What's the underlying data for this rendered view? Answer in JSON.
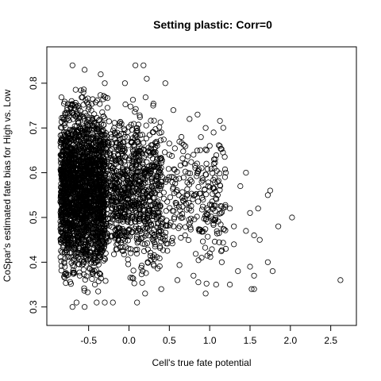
{
  "chart_data": {
    "type": "scatter",
    "title": "Setting plastic: Corr=0",
    "xlabel": "Cell's true fate potential",
    "ylabel": "CoSpar's estimated fate bias for High vs. Low",
    "xlim": [
      -0.9,
      2.7
    ],
    "ylim": [
      0.28,
      0.86
    ],
    "x_ticks": [
      -0.5,
      0.0,
      0.5,
      1.0,
      1.5,
      2.0,
      2.5
    ],
    "x_tick_labels": [
      "-0.5",
      "0.0",
      "0.5",
      "1.0",
      "1.5",
      "2.0",
      "2.5"
    ],
    "y_ticks": [
      0.3,
      0.4,
      0.5,
      0.6,
      0.7,
      0.8
    ],
    "y_tick_labels": [
      "0.3",
      "0.4",
      "0.5",
      "0.6",
      "0.7",
      "0.8"
    ],
    "grid": false,
    "marker": "open-circle",
    "marker_color": "#000000",
    "series": [
      {
        "points": [
          [
            -0.7,
            0.84
          ],
          [
            -0.55,
            0.83
          ],
          [
            -0.35,
            0.82
          ],
          [
            0.08,
            0.84
          ],
          [
            0.18,
            0.84
          ],
          [
            -0.3,
            0.8
          ],
          [
            -0.05,
            0.8
          ],
          [
            0.22,
            0.81
          ],
          [
            0.45,
            0.8
          ],
          [
            0.3,
            0.75
          ],
          [
            0.55,
            0.74
          ],
          [
            0.75,
            0.72
          ],
          [
            0.85,
            0.73
          ],
          [
            0.95,
            0.7
          ],
          [
            0.1,
            0.7
          ],
          [
            0.4,
            0.69
          ],
          [
            0.65,
            0.68
          ],
          [
            1.0,
            0.66
          ],
          [
            0.8,
            0.64
          ],
          [
            0.5,
            0.64
          ],
          [
            0.7,
            0.62
          ],
          [
            0.9,
            0.61
          ],
          [
            1.05,
            0.62
          ],
          [
            1.2,
            0.6
          ],
          [
            1.45,
            0.6
          ],
          [
            1.38,
            0.57
          ],
          [
            1.75,
            0.56
          ],
          [
            1.72,
            0.55
          ],
          [
            1.1,
            0.55
          ],
          [
            1.25,
            0.52
          ],
          [
            1.5,
            0.51
          ],
          [
            1.6,
            0.52
          ],
          [
            2.02,
            0.5
          ],
          [
            1.85,
            0.48
          ],
          [
            1.3,
            0.48
          ],
          [
            1.45,
            0.47
          ],
          [
            1.55,
            0.46
          ],
          [
            1.62,
            0.45
          ],
          [
            1.3,
            0.44
          ],
          [
            1.2,
            0.43
          ],
          [
            1.0,
            0.42
          ],
          [
            0.9,
            0.41
          ],
          [
            1.15,
            0.4
          ],
          [
            1.35,
            0.38
          ],
          [
            1.5,
            0.39
          ],
          [
            1.55,
            0.37
          ],
          [
            1.72,
            0.4
          ],
          [
            1.78,
            0.38
          ],
          [
            1.25,
            0.35
          ],
          [
            1.08,
            0.35
          ],
          [
            0.95,
            0.33
          ],
          [
            1.52,
            0.34
          ],
          [
            1.55,
            0.34
          ],
          [
            2.62,
            0.36
          ],
          [
            0.6,
            0.36
          ],
          [
            0.8,
            0.37
          ],
          [
            0.4,
            0.34
          ],
          [
            0.2,
            0.33
          ],
          [
            0.1,
            0.31
          ],
          [
            -0.3,
            0.31
          ],
          [
            -0.7,
            0.3
          ],
          [
            -0.65,
            0.31
          ],
          [
            -0.55,
            0.3
          ],
          [
            -0.4,
            0.31
          ],
          [
            -0.2,
            0.31
          ]
        ]
      }
    ],
    "note_dense_region": {
      "x_range": [
        -0.85,
        -0.3
      ],
      "y_range": [
        0.3,
        0.82
      ],
      "n": 2200
    },
    "note_mid_region": {
      "x_range": [
        -0.3,
        0.4
      ],
      "y_range": [
        0.32,
        0.8
      ],
      "n": 900
    },
    "note_sparse_region": {
      "x_range": [
        0.4,
        1.2
      ],
      "y_range": [
        0.34,
        0.74
      ],
      "n": 260
    }
  }
}
